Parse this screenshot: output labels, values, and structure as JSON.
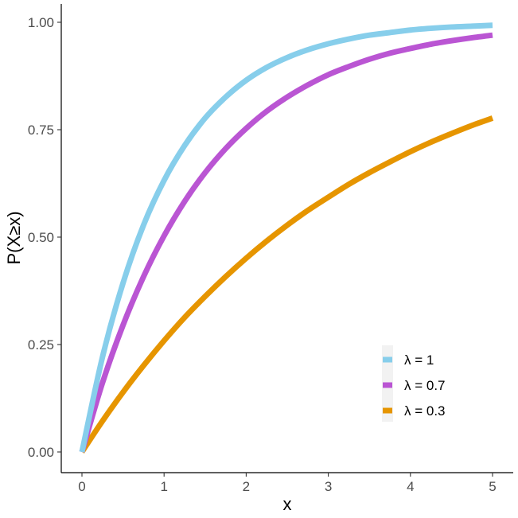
{
  "chart_data": {
    "type": "line",
    "xlabel": "x",
    "ylabel": "P(X≥x)",
    "xlim": [
      0,
      5
    ],
    "ylim": [
      0,
      1
    ],
    "x_ticks": [
      0,
      1,
      2,
      3,
      4,
      5
    ],
    "x_tick_labels": [
      "0",
      "1",
      "2",
      "3",
      "4",
      "5"
    ],
    "y_ticks": [
      0,
      0.25,
      0.5,
      0.75,
      1.0
    ],
    "y_tick_labels": [
      "0.00",
      "0.25",
      "0.50",
      "0.75",
      "1.00"
    ],
    "grid": false,
    "legend_position": "bottom-right",
    "x": [
      0,
      0.25,
      0.5,
      0.75,
      1,
      1.25,
      1.5,
      1.75,
      2,
      2.25,
      2.5,
      2.75,
      3,
      3.25,
      3.5,
      3.75,
      4,
      4.25,
      4.5,
      4.75,
      5
    ],
    "series": [
      {
        "name": "λ = 1",
        "color": "#87ceeb",
        "values": [
          0,
          0.221,
          0.393,
          0.528,
          0.632,
          0.713,
          0.777,
          0.826,
          0.865,
          0.895,
          0.918,
          0.936,
          0.95,
          0.961,
          0.97,
          0.976,
          0.982,
          0.986,
          0.989,
          0.991,
          0.993
        ]
      },
      {
        "name": "λ = 0.7",
        "color": "#ba55d3",
        "values": [
          0,
          0.161,
          0.295,
          0.408,
          0.503,
          0.583,
          0.65,
          0.706,
          0.753,
          0.793,
          0.826,
          0.854,
          0.878,
          0.897,
          0.914,
          0.928,
          0.939,
          0.949,
          0.957,
          0.964,
          0.97
        ]
      },
      {
        "name": "λ = 0.3",
        "color": "#e69500",
        "values": [
          0,
          0.072,
          0.139,
          0.201,
          0.259,
          0.313,
          0.362,
          0.408,
          0.451,
          0.491,
          0.528,
          0.562,
          0.593,
          0.623,
          0.65,
          0.675,
          0.699,
          0.721,
          0.741,
          0.76,
          0.777
        ]
      }
    ]
  }
}
